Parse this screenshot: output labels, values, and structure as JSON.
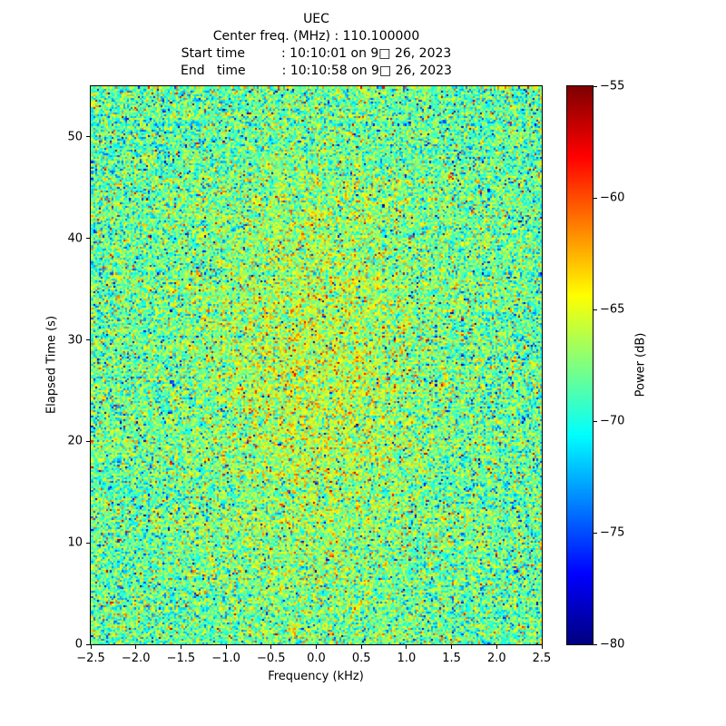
{
  "figure": {
    "title": "UEC",
    "header_lines": [
      "Center freq. (MHz) : 110.100000",
      "Start time         : 10:10:01 on 9□ 26, 2023",
      "End   time         : 10:10:58 on 9□ 26, 2023"
    ]
  },
  "chart_data": {
    "type": "heatmap",
    "title": "UEC",
    "subtitle_lines": [
      "Center freq. (MHz) : 110.100000",
      "Start time : 10:10:01 on 9□ 26, 2023",
      "End time : 10:10:58 on 9□ 26, 2023"
    ],
    "xlabel": "Frequency (kHz)",
    "ylabel": "Elapsed Time (s)",
    "xlim": [
      -2.5,
      2.5
    ],
    "ylim": [
      0,
      55
    ],
    "x_ticks": [
      -2.5,
      -2.0,
      -1.5,
      -1.0,
      -0.5,
      0.0,
      0.5,
      1.0,
      1.5,
      2.0,
      2.5
    ],
    "x_tick_labels": [
      "−2.5",
      "−2.0",
      "−1.5",
      "−1.0",
      "−0.5",
      "0.0",
      "0.5",
      "1.0",
      "1.5",
      "2.0",
      "2.5"
    ],
    "y_ticks": [
      0,
      10,
      20,
      30,
      40,
      50
    ],
    "y_tick_labels": [
      "0",
      "10",
      "20",
      "30",
      "40",
      "50"
    ],
    "grid": false,
    "colorbar": {
      "label": "Power (dB)",
      "vmin": -80,
      "vmax": -55,
      "ticks": [
        -55,
        -60,
        -65,
        -70,
        -75,
        -80
      ],
      "tick_labels": [
        "−55",
        "−60",
        "−65",
        "−70",
        "−75",
        "−80"
      ],
      "colormap": "jet",
      "position": "right"
    },
    "noise_model": {
      "description": "Dense random-speckle spectrogram (noise floor) in jet colormap; mostly green/cyan around −68 dB with yellow flecks, sparse red/orange peaks near −56 dB and dark-blue dips near −80 dB; a broad slightly warmer (+~2.4 dB) region around 0 kHz and mid elapsed times",
      "mean_db": -68.3,
      "std_db": 2.9,
      "row_jitter_db": 0.4,
      "center_bump_db": 2.4,
      "center_bump_sigma_khz": 0.85,
      "bump_center_s": 26,
      "bump_sigma_s": 15,
      "outlier_prob": 0.03,
      "seed": 7,
      "cols": 240,
      "rows": 300
    }
  }
}
